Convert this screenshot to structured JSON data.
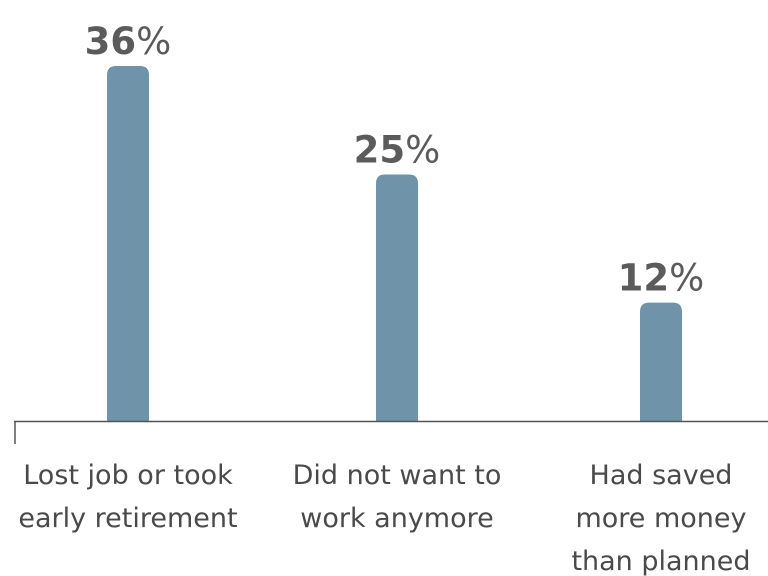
{
  "chart_data": {
    "type": "bar",
    "categories": [
      [
        "Lost job or took",
        "early retirement"
      ],
      [
        "Did not want to",
        "work anymore"
      ],
      [
        "Had saved",
        "more money",
        "than planned"
      ]
    ],
    "values": [
      36,
      25,
      12
    ],
    "value_labels": [
      {
        "number": "36",
        "unit": "%"
      },
      {
        "number": "25",
        "unit": "%"
      },
      {
        "number": "12",
        "unit": "%"
      }
    ],
    "ylim": [
      0,
      36
    ],
    "grid": false,
    "bar_color": "#6f94aa",
    "axis_color": "#555555",
    "label_color": "#4a4a4a",
    "value_color": "#5b5b5b"
  }
}
